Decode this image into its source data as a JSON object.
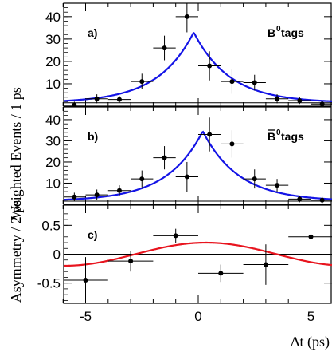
{
  "chart_data": {
    "type": "scatter",
    "ylabel_top": "Weighted  Events / 1 ps",
    "ylabel_bottom": "Asymmetry / 2 ps",
    "xlabel": "Δt (ps)",
    "xlim": [
      -6,
      6
    ],
    "xticks": [
      "-5",
      "0",
      "5"
    ],
    "xtick_values": [
      -5,
      0,
      5
    ],
    "panels": [
      {
        "label": "a)",
        "tag": "B",
        "tag_sup": "0",
        "tag_suffix": " tags",
        "tag_bar": false,
        "ylim": [
          0,
          46
        ],
        "yticks": [
          "10",
          "20",
          "30",
          "40"
        ],
        "ytick_values": [
          10,
          20,
          30,
          40
        ],
        "baseline": 1.5,
        "points": [
          {
            "x": -5.5,
            "y": 0.5,
            "yerr": 1.5
          },
          {
            "x": -4.5,
            "y": 3.3,
            "yerr": 2.0
          },
          {
            "x": -3.5,
            "y": 3.0,
            "yerr": 1.5
          },
          {
            "x": -2.5,
            "y": 11.0,
            "yerr": 3.5
          },
          {
            "x": -1.5,
            "y": 26.0,
            "yerr": 5.5
          },
          {
            "x": -0.5,
            "y": 40.0,
            "yerr": 7.0
          },
          {
            "x": 0.5,
            "y": 18.0,
            "yerr": 6.5
          },
          {
            "x": 1.5,
            "y": 11.0,
            "yerr": 5.5
          },
          {
            "x": 2.5,
            "y": 10.5,
            "yerr": 3.5
          },
          {
            "x": 3.5,
            "y": 3.3,
            "yerr": 2.0
          },
          {
            "x": 4.5,
            "y": 2.5,
            "yerr": 1.5
          },
          {
            "x": 5.5,
            "y": 1.0,
            "yerr": 1.0
          }
        ],
        "curve": {
          "amp": 31.5,
          "center": -0.2,
          "tau": 1.6,
          "floor": 1.5
        }
      },
      {
        "label": "b)",
        "tag": "B",
        "tag_sup": "0",
        "tag_suffix": " tags",
        "tag_bar": true,
        "ylim": [
          0,
          46
        ],
        "yticks": [
          "10",
          "20",
          "30",
          "40"
        ],
        "ytick_values": [
          10,
          20,
          30,
          40
        ],
        "baseline": 1.5,
        "points": [
          {
            "x": -5.5,
            "y": 3.5,
            "yerr": 2.0
          },
          {
            "x": -4.5,
            "y": 4.5,
            "yerr": 2.5
          },
          {
            "x": -3.5,
            "y": 6.5,
            "yerr": 2.5
          },
          {
            "x": -2.5,
            "y": 12.0,
            "yerr": 4.0
          },
          {
            "x": -1.5,
            "y": 22.0,
            "yerr": 5.5
          },
          {
            "x": -0.5,
            "y": 13.0,
            "yerr": 7.0
          },
          {
            "x": 0.5,
            "y": 33.0,
            "yerr": 8.0
          },
          {
            "x": 1.5,
            "y": 28.5,
            "yerr": 6.5
          },
          {
            "x": 2.5,
            "y": 12.0,
            "yerr": 4.5
          },
          {
            "x": 3.5,
            "y": 9.0,
            "yerr": 3.0
          },
          {
            "x": 4.5,
            "y": 2.5,
            "yerr": 1.5
          },
          {
            "x": 5.5,
            "y": 2.0,
            "yerr": 1.5
          }
        ],
        "curve": {
          "amp": 33,
          "center": 0.2,
          "tau": 1.6,
          "floor": 1.5
        }
      },
      {
        "label": "c)",
        "ylim": [
          -0.85,
          0.85
        ],
        "yticks": [
          "0.5",
          "0",
          "-0.5"
        ],
        "ytick_values": [
          0.5,
          0,
          -0.5
        ],
        "baseline": 0,
        "points": [
          {
            "x": -5.0,
            "y": -0.45,
            "yerr": 0.4,
            "xerr": 1.0
          },
          {
            "x": -3.0,
            "y": -0.12,
            "yerr": 0.18,
            "xerr": 1.0
          },
          {
            "x": -1.0,
            "y": 0.32,
            "yerr": 0.12,
            "xerr": 1.0
          },
          {
            "x": 1.0,
            "y": -0.33,
            "yerr": 0.15,
            "xerr": 1.0
          },
          {
            "x": 3.0,
            "y": -0.18,
            "yerr": 0.35,
            "xerr": 1.0
          },
          {
            "x": 5.0,
            "y": 0.3,
            "yerr": 0.3,
            "xerr": 1.0
          }
        ],
        "curve": {
          "type": "sine",
          "amp": 0.2,
          "omega": 0.5,
          "phase": 1.4
        }
      }
    ]
  }
}
